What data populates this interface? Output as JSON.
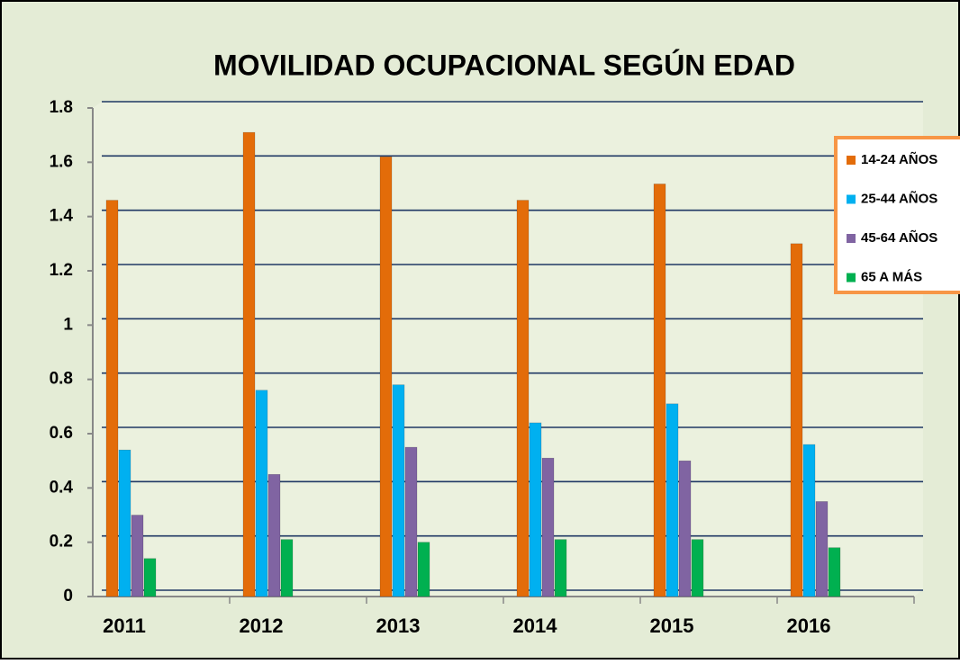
{
  "chart_data": {
    "type": "bar",
    "title": "MOVILIDAD OCUPACIONAL SEGÚN EDAD",
    "categories": [
      "2011",
      "2012",
      "2013",
      "2014",
      "2015",
      "2016"
    ],
    "series": [
      {
        "name": "14-24 AÑOS",
        "color": "#e36c09",
        "values": [
          1.46,
          1.71,
          1.62,
          1.46,
          1.52,
          1.3
        ]
      },
      {
        "name": "25-44 AÑOS",
        "color": "#00b0f0",
        "values": [
          0.54,
          0.76,
          0.78,
          0.64,
          0.71,
          0.56
        ]
      },
      {
        "name": "45-64 AÑOS",
        "color": "#8064a2",
        "values": [
          0.3,
          0.45,
          0.55,
          0.51,
          0.5,
          0.35
        ]
      },
      {
        "name": "65 A MÁS",
        "color": "#00b050",
        "values": [
          0.14,
          0.21,
          0.2,
          0.21,
          0.21,
          0.18
        ]
      }
    ],
    "ylim": [
      0,
      1.8
    ],
    "yticks": [
      0,
      0.2,
      0.4,
      0.6,
      0.8,
      1,
      1.2,
      1.4,
      1.6,
      1.8
    ],
    "grid": true,
    "legend": "right"
  }
}
